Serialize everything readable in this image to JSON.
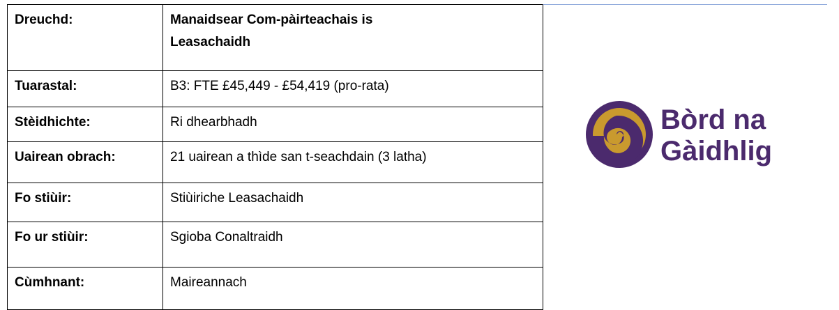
{
  "table": {
    "rows": [
      [
        "Dreuchd:",
        "Manaidsear Com-pàirteachais is Leasachaidh"
      ],
      [
        "Tuarastal:",
        "B3: FTE £45,449 - £54,419 (pro-rata)"
      ],
      [
        "Stèidhichte:",
        "Ri dhearbhadh"
      ],
      [
        "Uairean obrach:",
        "21 uairean a thìde san t-seachdain (3 latha)"
      ],
      [
        "Fo stiùir:",
        "Stiùiriche Leasachaidh"
      ],
      [
        "Fo ur stiùir:",
        "Sgioba Conaltraidh"
      ],
      [
        "Cùmhnant:",
        "Maireannach"
      ]
    ]
  },
  "logo": {
    "lines": [
      "Bòrd na",
      "Gàidhlig"
    ]
  }
}
